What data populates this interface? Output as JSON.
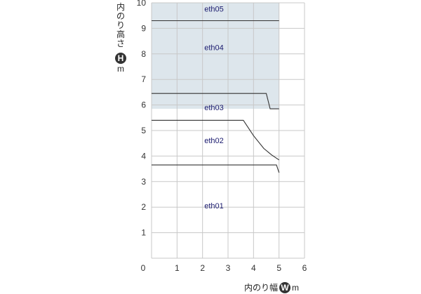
{
  "chart_data": {
    "type": "line",
    "title": "",
    "xlabel": {
      "prefix": "内のり幅",
      "badge": "W",
      "unit": "m"
    },
    "ylabel": {
      "prefix": "内のり高さ",
      "badge": "H",
      "unit": "m"
    },
    "xlim": [
      0,
      6
    ],
    "ylim": [
      0,
      10
    ],
    "x_ticks": [
      "0",
      "1",
      "2",
      "3",
      "4",
      "5",
      "6"
    ],
    "y_ticks": [
      "1",
      "2",
      "3",
      "4",
      "5",
      "6",
      "7",
      "8",
      "9",
      "10"
    ],
    "grid": true,
    "shaded_region": {
      "x": [
        0,
        5
      ],
      "y": [
        5.85,
        10
      ],
      "color": "#dde6ec"
    },
    "series": [
      {
        "points": [
          [
            0,
            3.65
          ],
          [
            4.9,
            3.65
          ],
          [
            5.0,
            3.35
          ]
        ]
      },
      {
        "points": [
          [
            0,
            5.4
          ],
          [
            3.6,
            5.4
          ],
          [
            4.0,
            4.8
          ],
          [
            4.4,
            4.3
          ],
          [
            4.7,
            4.05
          ],
          [
            5.0,
            3.85
          ]
        ]
      },
      {
        "points": [
          [
            0,
            6.45
          ],
          [
            4.5,
            6.45
          ],
          [
            4.65,
            5.85
          ],
          [
            5.0,
            5.85
          ]
        ]
      },
      {
        "points": [
          [
            0,
            9.3
          ],
          [
            5.0,
            9.3
          ]
        ]
      }
    ],
    "region_labels": [
      {
        "text": "eth01",
        "x": 2.45,
        "y": 1.95
      },
      {
        "text": "eth02",
        "x": 2.45,
        "y": 4.5
      },
      {
        "text": "eth03",
        "x": 2.45,
        "y": 5.8
      },
      {
        "text": "eth04",
        "x": 2.45,
        "y": 8.15
      },
      {
        "text": "eth05",
        "x": 2.45,
        "y": 9.65
      }
    ],
    "colors": {
      "grid": "#c8c8c8",
      "line": "#333333",
      "badge": "#333333"
    }
  }
}
